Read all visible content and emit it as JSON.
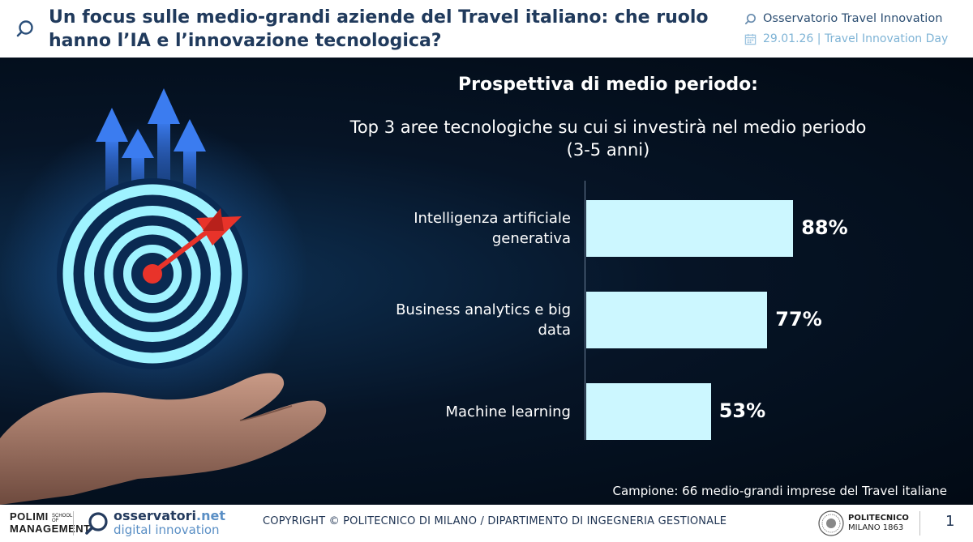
{
  "header": {
    "title": "Un focus sulle medio-grandi aziende del Travel italiano: che ruolo hanno l’IA e l’innovazione tecnologica?",
    "observatory": "Osservatorio Travel Innovation",
    "date_event": "29.01.26 | Travel Innovation Day"
  },
  "slide": {
    "heading": "Prospettiva di medio periodo:",
    "subheading_line1": "Top 3 aree tecnologiche su cui si investirà nel medio periodo",
    "subheading_line2": "(3-5 anni)",
    "sample_note": "Campione: 66 medio-grandi imprese del Travel italiane"
  },
  "chart_data": {
    "type": "bar",
    "orientation": "horizontal",
    "title": "Top 3 aree tecnologiche su cui si investirà nel medio periodo (3-5 anni)",
    "categories": [
      [
        "Intelligenza artificiale",
        "generativa"
      ],
      [
        "Business analytics e big",
        "data"
      ],
      [
        "Machine learning"
      ]
    ],
    "values": [
      88,
      77,
      53
    ],
    "value_labels": [
      "88%",
      "77%",
      "53%"
    ],
    "unit": "%",
    "xlim": [
      0,
      100
    ],
    "bar_color": "#ccf7ff",
    "grid": false,
    "legend": "none"
  },
  "footer": {
    "polimi_line1": "POLIMI",
    "polimi_line2": "MANAGEMENT",
    "polimi_school": "SCHOOL OF",
    "obs_brand": "osservatori",
    "obs_brand_suffix": ".net",
    "obs_tagline": "digital innovation",
    "copyright": "COPYRIGHT © POLITECNICO DI MILANO / DIPARTIMENTO DI INGEGNERIA GESTIONALE",
    "politecnico_line1": "POLITECNICO",
    "politecnico_line2": "MILANO 1863",
    "page_number": "1"
  },
  "colors": {
    "title": "#203a5c",
    "accent_light": "#7fb4d6",
    "panel_dark": "#061426",
    "arrow_blue": "#2f6fe0",
    "target_cyan": "#9ff3ff",
    "dart_red": "#e8332a"
  },
  "icons": [
    "search-icon",
    "calendar-icon",
    "target-icon",
    "arrow-icon",
    "dart-icon",
    "hand-icon",
    "seal-icon"
  ]
}
